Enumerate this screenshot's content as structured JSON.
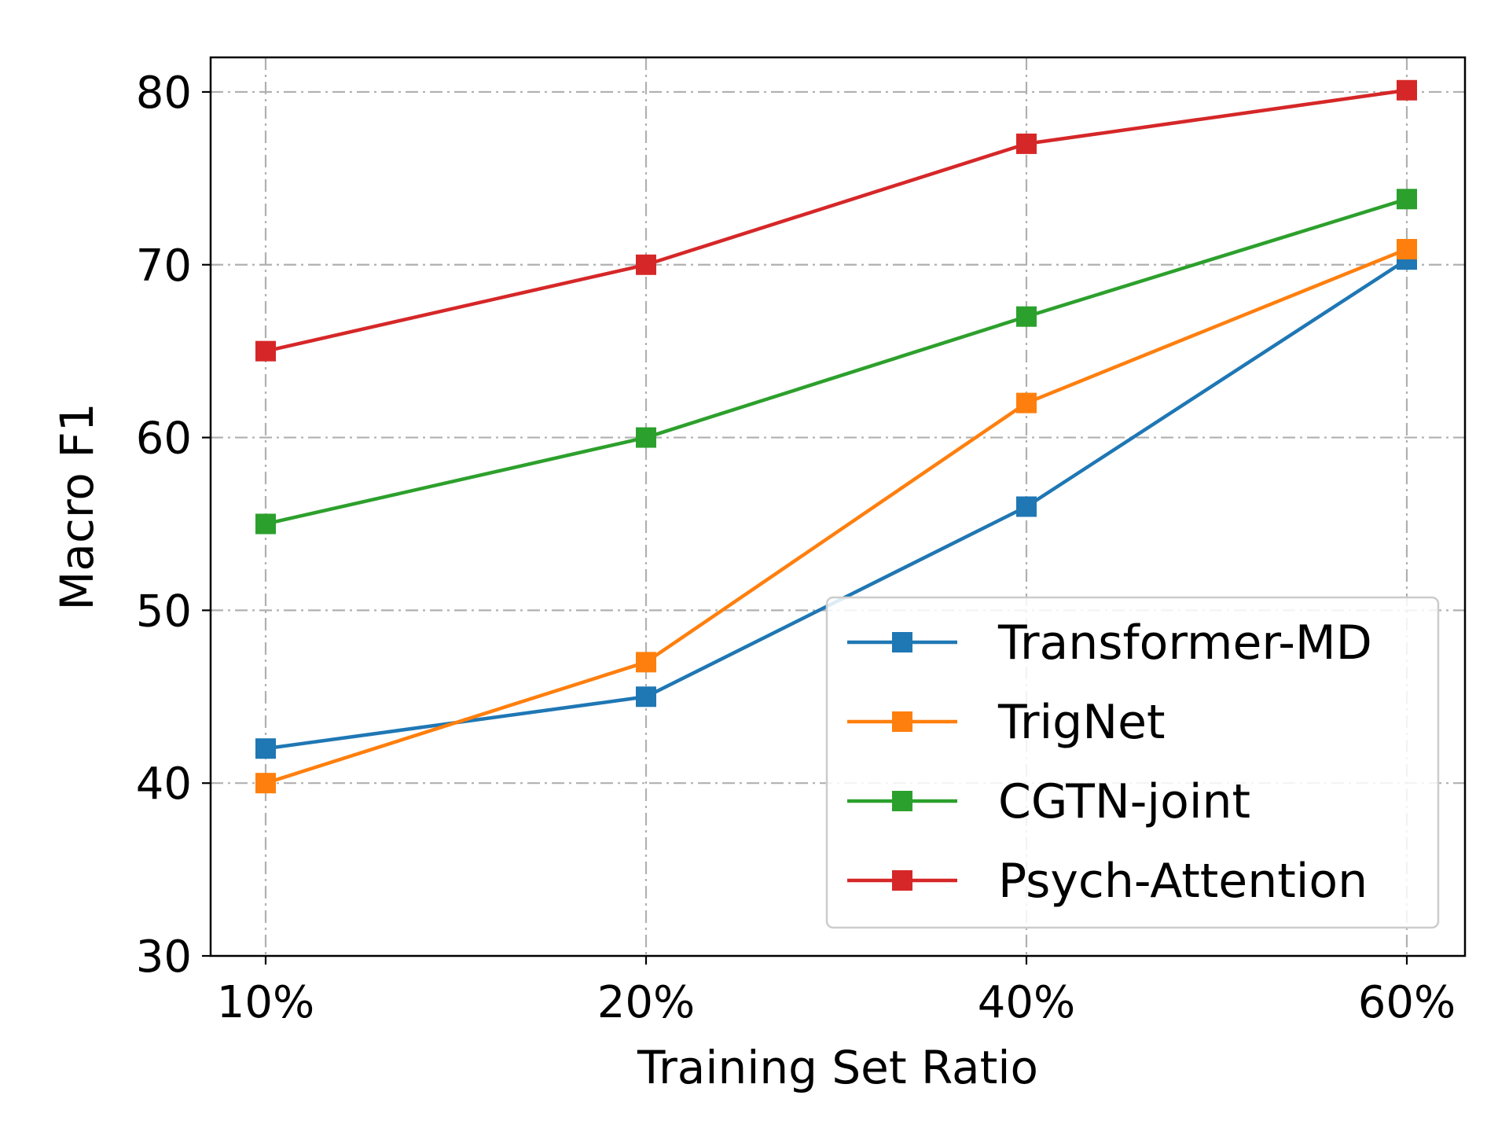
{
  "chart_data": {
    "type": "line",
    "title": "",
    "xlabel": "Training Set Ratio",
    "ylabel": "Macro F1",
    "categories": [
      "10%",
      "20%",
      "40%",
      "60%"
    ],
    "ylim": [
      30,
      82
    ],
    "yticks": [
      30,
      40,
      50,
      60,
      70,
      80
    ],
    "grid": true,
    "legend_position": "lower-right",
    "marker": "square",
    "series": [
      {
        "name": "Transformer-MD",
        "color": "#1f77b4",
        "values": [
          42,
          45,
          56,
          70.3
        ]
      },
      {
        "name": "TrigNet",
        "color": "#ff7f0e",
        "values": [
          40,
          47,
          62,
          70.9
        ]
      },
      {
        "name": "CGTN-joint",
        "color": "#2ca02c",
        "values": [
          55,
          60,
          67,
          73.8
        ]
      },
      {
        "name": "Psych-Attention",
        "color": "#d62728",
        "values": [
          65,
          70,
          77,
          80.1
        ]
      }
    ]
  }
}
